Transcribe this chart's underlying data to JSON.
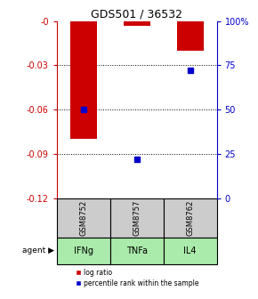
{
  "title": "GDS501 / 36532",
  "samples": [
    "GSM8752",
    "GSM8757",
    "GSM8762"
  ],
  "agents": [
    "IFNg",
    "TNFa",
    "IL4"
  ],
  "log_ratios": [
    -0.08,
    -0.003,
    -0.02
  ],
  "percentiles": [
    50,
    22,
    72
  ],
  "ylim_left": [
    -0.12,
    0
  ],
  "ylim_right": [
    0,
    100
  ],
  "yticks_left": [
    0,
    -0.03,
    -0.06,
    -0.09,
    -0.12
  ],
  "yticks_right": [
    100,
    75,
    50,
    25,
    0
  ],
  "ytick_labels_left": [
    "-0",
    "-0.03",
    "-0.06",
    "-0.09",
    "-0.12"
  ],
  "ytick_labels_right": [
    "100%",
    "75",
    "50",
    "25",
    "0"
  ],
  "bar_color": "#cc0000",
  "dot_color": "#0000cc",
  "sample_box_color": "#cccccc",
  "agent_box_color": "#aaeaaa",
  "title_color": "#000000",
  "left_axis_color": "#cc0000",
  "right_axis_color": "#0000cc",
  "bar_width": 0.5,
  "legend_labels": [
    "log ratio",
    "percentile rank within the sample"
  ]
}
